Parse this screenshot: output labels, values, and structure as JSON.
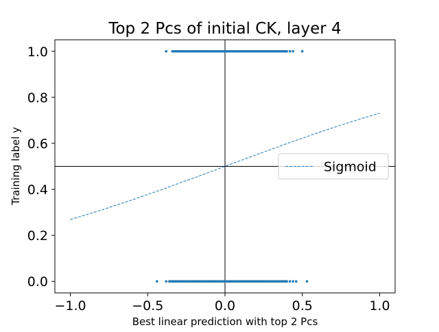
{
  "chart_data": {
    "type": "scatter",
    "title": "Top 2 Pcs of initial CK, layer 4",
    "xlabel": "Best linear prediction with top 2 Pcs",
    "ylabel": "Training label y",
    "xlim": [
      -1.1,
      1.1
    ],
    "ylim": [
      -0.05,
      1.05
    ],
    "x_ticks": [
      -1.0,
      -0.5,
      0.0,
      0.5,
      1.0
    ],
    "x_tick_labels": [
      "−1.0",
      "−0.5",
      "0.0",
      "0.5",
      "1.0"
    ],
    "y_ticks": [
      0.0,
      0.2,
      0.4,
      0.6,
      0.8,
      1.0
    ],
    "y_tick_labels": [
      "0.0",
      "0.2",
      "0.4",
      "0.6",
      "0.8",
      "1.0"
    ],
    "reference_lines": {
      "x": 0.0,
      "y": 0.5
    },
    "grid": false,
    "legend_position": "center-right",
    "series": [
      {
        "name": "",
        "kind": "points",
        "color": "#1f77b4",
        "y": 1.0,
        "x": [
          -0.38,
          -0.34,
          -0.33,
          -0.32,
          -0.31,
          -0.3,
          -0.29,
          -0.28,
          -0.27,
          -0.26,
          -0.25,
          -0.24,
          -0.23,
          -0.22,
          -0.21,
          -0.2,
          -0.19,
          -0.18,
          -0.17,
          -0.16,
          -0.15,
          -0.14,
          -0.13,
          -0.12,
          -0.11,
          -0.1,
          -0.09,
          -0.08,
          -0.07,
          -0.06,
          -0.05,
          -0.04,
          -0.03,
          -0.02,
          -0.01,
          0.0,
          0.01,
          0.02,
          0.03,
          0.04,
          0.05,
          0.06,
          0.07,
          0.08,
          0.09,
          0.1,
          0.11,
          0.12,
          0.13,
          0.14,
          0.15,
          0.16,
          0.17,
          0.18,
          0.19,
          0.2,
          0.21,
          0.22,
          0.23,
          0.24,
          0.25,
          0.26,
          0.27,
          0.28,
          0.29,
          0.3,
          0.31,
          0.32,
          0.33,
          0.34,
          0.35,
          0.36,
          0.37,
          0.38,
          0.39,
          0.4,
          0.42,
          0.44,
          0.5
        ]
      },
      {
        "name": "",
        "kind": "points",
        "color": "#1f77b4",
        "y": 0.0,
        "x": [
          -0.44,
          -0.38,
          -0.36,
          -0.35,
          -0.34,
          -0.33,
          -0.32,
          -0.31,
          -0.3,
          -0.29,
          -0.28,
          -0.27,
          -0.26,
          -0.25,
          -0.24,
          -0.23,
          -0.22,
          -0.21,
          -0.2,
          -0.19,
          -0.18,
          -0.17,
          -0.16,
          -0.15,
          -0.14,
          -0.13,
          -0.12,
          -0.11,
          -0.1,
          -0.09,
          -0.08,
          -0.07,
          -0.06,
          -0.05,
          -0.04,
          -0.03,
          -0.02,
          -0.01,
          0.0,
          0.01,
          0.02,
          0.03,
          0.04,
          0.05,
          0.06,
          0.07,
          0.08,
          0.09,
          0.1,
          0.11,
          0.12,
          0.13,
          0.14,
          0.15,
          0.16,
          0.17,
          0.18,
          0.19,
          0.2,
          0.21,
          0.22,
          0.23,
          0.24,
          0.25,
          0.26,
          0.27,
          0.28,
          0.29,
          0.3,
          0.31,
          0.32,
          0.33,
          0.34,
          0.35,
          0.36,
          0.37,
          0.38,
          0.39,
          0.4,
          0.42,
          0.44,
          0.46,
          0.53
        ]
      },
      {
        "name": "Sigmoid",
        "kind": "line",
        "style": "dashed",
        "color": "#1f77b4",
        "x": [
          -1.0,
          -0.9,
          -0.8,
          -0.7,
          -0.6,
          -0.5,
          -0.4,
          -0.3,
          -0.2,
          -0.1,
          0.0,
          0.1,
          0.2,
          0.3,
          0.4,
          0.5,
          0.6,
          0.7,
          0.8,
          0.9,
          1.0
        ],
        "y": [
          0.269,
          0.289,
          0.31,
          0.332,
          0.354,
          0.378,
          0.401,
          0.426,
          0.45,
          0.475,
          0.5,
          0.525,
          0.55,
          0.574,
          0.599,
          0.622,
          0.646,
          0.668,
          0.69,
          0.711,
          0.731
        ]
      }
    ]
  }
}
